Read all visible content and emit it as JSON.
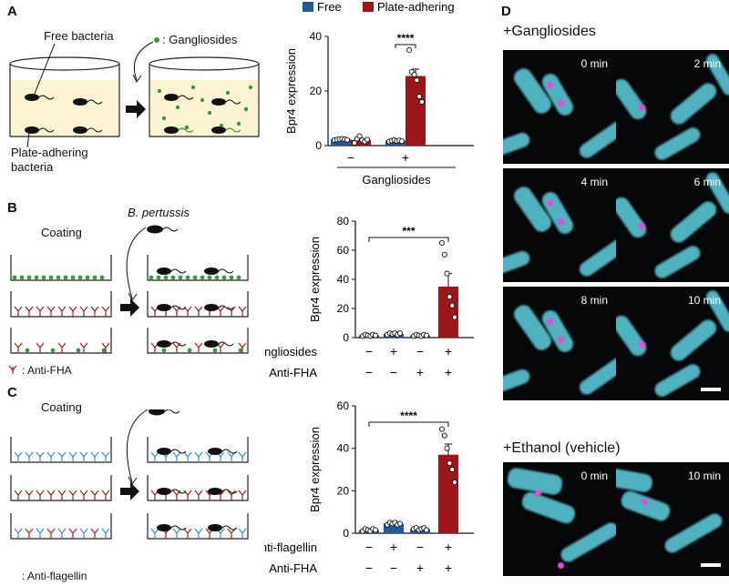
{
  "panels": {
    "A": {
      "letter": "A",
      "free_bacteria": "Free bacteria",
      "gangliosides_legend": ": Gangliosides",
      "plate_adhering_1": "Plate-adhering",
      "plate_adhering_2": "bacteria"
    },
    "B": {
      "letter": "B",
      "coating": "Coating",
      "species": "B. pertussis",
      "antibody_legend": ": Anti-FHA"
    },
    "C": {
      "letter": "C",
      "coating": "Coating",
      "antibody_legend": ": Anti-flagellin"
    },
    "D": {
      "letter": "D",
      "condition1": "+Gangliosides",
      "condition2": "+Ethanol (vehicle)",
      "times1": [
        "0 min",
        "2 min",
        "4 min",
        "6 min",
        "8 min",
        "10 min"
      ],
      "times2": [
        "0 min",
        "10 min"
      ]
    }
  },
  "colors": {
    "free": "#1f5a9c",
    "plate_adhering": "#9c1518",
    "ganglioside": "#3a9a3a",
    "anti_fha": "#a02020",
    "anti_flagellin": "#3a8ac8"
  },
  "chart_data": [
    {
      "type": "bar",
      "panel": "A",
      "legend": [
        "Free",
        "Plate-adhering"
      ],
      "categories": [
        "−",
        "+"
      ],
      "xlabel": "Gangliosides",
      "ylabel": "Bpr4 expression",
      "ylim": [
        0,
        40
      ],
      "yticks": [
        0,
        20,
        40
      ],
      "series": [
        {
          "name": "Free",
          "values": [
            2.3,
            1.8
          ],
          "errors": [
            0.3,
            0.3
          ],
          "points": [
            [
              2.0,
              2.2,
              2.4,
              2.5,
              2.3,
              2.1
            ],
            [
              1.5,
              1.8,
              2.0,
              1.7,
              1.9,
              1.6
            ]
          ]
        },
        {
          "name": "Plate-adhering",
          "values": [
            2.1,
            25.5
          ],
          "errors": [
            0.5,
            2.5
          ],
          "points": [
            [
              1.0,
              2.5,
              3.5,
              2.0,
              1.5,
              2.2
            ],
            [
              35,
              27,
              26,
              24,
              18,
              16
            ]
          ]
        }
      ],
      "significance": "****"
    },
    {
      "type": "bar",
      "panel": "B",
      "ylabel": "Bpr4 expression",
      "ylim": [
        0,
        80
      ],
      "yticks": [
        0,
        20,
        40,
        60,
        80
      ],
      "row_labels": [
        "Gangliosides",
        "Anti-FHA"
      ],
      "conditions": [
        [
          "−",
          "−"
        ],
        [
          "+",
          "−"
        ],
        [
          "−",
          "+"
        ],
        [
          "+",
          "+"
        ]
      ],
      "values": [
        1.5,
        2.5,
        1.5,
        35
      ],
      "errors": [
        0.4,
        0.5,
        0.3,
        9
      ],
      "points": [
        [
          1,
          2,
          1.5,
          1,
          2,
          1.5
        ],
        [
          2,
          3,
          2.5,
          3,
          2,
          3
        ],
        [
          1,
          2,
          1.5,
          1,
          2,
          1.5
        ],
        [
          65,
          57,
          44,
          28,
          22,
          14
        ]
      ],
      "significance": "***"
    },
    {
      "type": "bar",
      "panel": "C",
      "ylabel": "Bpr4 expression",
      "ylim": [
        0,
        60
      ],
      "yticks": [
        0,
        20,
        40,
        60
      ],
      "row_labels": [
        "Anti-flagellin",
        "Anti-FHA"
      ],
      "conditions": [
        [
          "−",
          "−"
        ],
        [
          "+",
          "−"
        ],
        [
          "−",
          "+"
        ],
        [
          "+",
          "+"
        ]
      ],
      "values": [
        1.5,
        4.5,
        2.0,
        37
      ],
      "errors": [
        0.4,
        0.6,
        0.4,
        5
      ],
      "points": [
        [
          1,
          2,
          1.5,
          1,
          2,
          1.5
        ],
        [
          4,
          5,
          4.5,
          5,
          4,
          4.5
        ],
        [
          2,
          2.5,
          1.5,
          2,
          2.5,
          1.5
        ],
        [
          49,
          46,
          40,
          33,
          30,
          24
        ]
      ],
      "significance": "****"
    }
  ]
}
